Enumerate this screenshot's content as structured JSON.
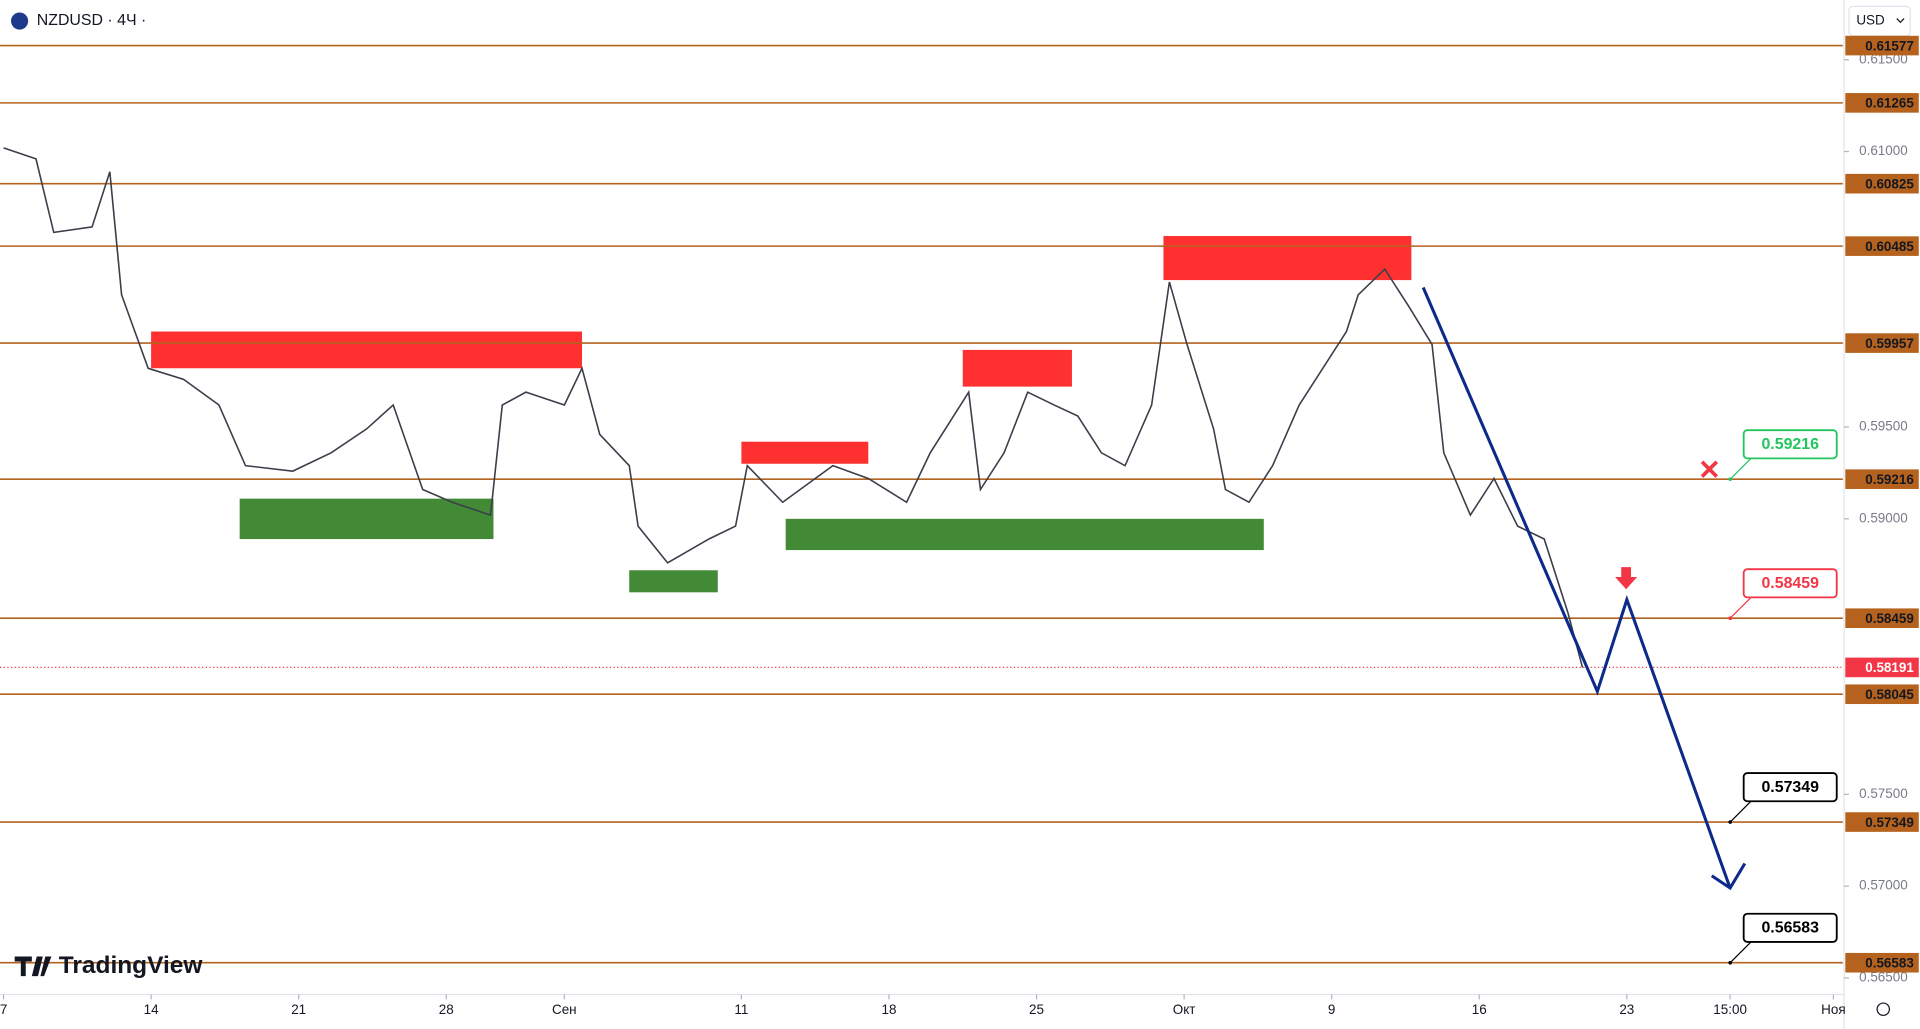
{
  "chart_data": {
    "type": "line",
    "title": "NZDUSD · 4Ч ·",
    "currency": "USD",
    "brand": "TradingView",
    "color": "#3b3f4a",
    "xlim": [
      -0.12,
      62.32
    ],
    "ylim": [
      0.5641,
      0.61824
    ],
    "xticks": [
      {
        "value": 0,
        "label": "7"
      },
      {
        "value": 5,
        "label": "14"
      },
      {
        "value": 10,
        "label": "21"
      },
      {
        "value": 15,
        "label": "28"
      },
      {
        "value": 19,
        "label": "Сен"
      },
      {
        "value": 25,
        "label": "11"
      },
      {
        "value": 30,
        "label": "18"
      },
      {
        "value": 35,
        "label": "25"
      },
      {
        "value": 40,
        "label": "Окт"
      },
      {
        "value": 45,
        "label": "9"
      },
      {
        "value": 50,
        "label": "16"
      },
      {
        "value": 55,
        "label": "23"
      },
      {
        "value": 58.5,
        "label": "15:00"
      },
      {
        "value": 62,
        "label": "Ноя"
      }
    ],
    "yticks": [
      {
        "value": 0.615,
        "label": "0.61500"
      },
      {
        "value": 0.61,
        "label": "0.61000"
      },
      {
        "value": 0.595,
        "label": "0.59500"
      },
      {
        "value": 0.59,
        "label": "0.59000"
      },
      {
        "value": 0.575,
        "label": "0.57500"
      },
      {
        "value": 0.57,
        "label": "0.57000"
      },
      {
        "value": 0.565,
        "label": "0.56500"
      }
    ],
    "x": [
      0,
      1.1,
      1.7,
      3,
      3.6,
      4,
      4.9,
      6.1,
      7.3,
      8.2,
      9.8,
      11.1,
      12.3,
      13.2,
      14.2,
      15.2,
      16.5,
      16.9,
      17.7,
      19,
      19.6,
      20.2,
      21.2,
      21.5,
      22.5,
      23.9,
      24.8,
      25.2,
      26.4,
      28.1,
      29.3,
      30.6,
      31.4,
      32.7,
      33.1,
      33.9,
      34.7,
      35.6,
      36.4,
      37.2,
      38,
      38.9,
      39.5,
      40.1,
      41,
      41.4,
      42.2,
      43,
      43.9,
      44.7,
      45.5,
      45.9,
      46.8,
      47.6,
      48.4,
      48.8,
      49.7,
      50.5,
      51.3,
      52.2,
      53,
      53.5
    ],
    "values": [
      0.6102,
      0.6096,
      0.6056,
      0.6059,
      0.6089,
      0.6022,
      0.5982,
      0.5976,
      0.5962,
      0.5929,
      0.5926,
      0.5936,
      0.5949,
      0.5962,
      0.5916,
      0.5909,
      0.5902,
      0.5962,
      0.5969,
      0.5962,
      0.5982,
      0.5946,
      0.5929,
      0.5896,
      0.5876,
      0.5889,
      0.5896,
      0.5929,
      0.5909,
      0.5929,
      0.5922,
      0.5909,
      0.5936,
      0.5969,
      0.5916,
      0.5936,
      0.5969,
      0.5962,
      0.5956,
      0.5936,
      0.5929,
      0.5962,
      0.6029,
      0.5995,
      0.5949,
      0.5916,
      0.5909,
      0.5929,
      0.5962,
      0.5982,
      0.6002,
      0.6022,
      0.6036,
      0.6016,
      0.5995,
      0.5936,
      0.5902,
      0.5922,
      0.5896,
      0.5889,
      0.5849,
      0.5819
    ],
    "levels": [
      0.61577,
      0.61265,
      0.60825,
      0.60485,
      0.59957,
      0.59216,
      0.58459,
      0.58045,
      0.57349,
      0.56583
    ],
    "level_color": "#b5621e",
    "current_price": 0.58191,
    "current_color": "#f23645",
    "zones": [
      {
        "x": [
          5,
          19.6
        ],
        "y": [
          0.6002,
          0.5982
        ],
        "color": "#ff1a1a"
      },
      {
        "x": [
          8,
          16.6
        ],
        "y": [
          0.5911,
          0.5889
        ],
        "color": "#2e7d1f"
      },
      {
        "x": [
          21.2,
          24.2
        ],
        "y": [
          0.5872,
          0.586
        ],
        "color": "#2e7d1f"
      },
      {
        "x": [
          25,
          29.3
        ],
        "y": [
          0.5942,
          0.593
        ],
        "color": "#ff1a1a"
      },
      {
        "x": [
          26.5,
          42.7
        ],
        "y": [
          0.59,
          0.5883
        ],
        "color": "#2e7d1f"
      },
      {
        "x": [
          32.5,
          36.2
        ],
        "y": [
          0.5992,
          0.5972
        ],
        "color": "#ff1a1a"
      },
      {
        "x": [
          39.3,
          47.7
        ],
        "y": [
          0.6054,
          0.603
        ],
        "color": "#ff1a1a"
      }
    ],
    "projection": {
      "x": [
        48.1,
        54,
        55,
        58.5
      ],
      "values": [
        0.6026,
        0.5806,
        0.5856,
        0.5699
      ],
      "color": "#0d2a8a"
    },
    "callouts": [
      {
        "value": 0.59216,
        "color": "#22c55e"
      },
      {
        "value": 0.58459,
        "color": "#f23645"
      },
      {
        "value": 0.57349,
        "color": "#000000"
      },
      {
        "value": 0.56583,
        "color": "#000000"
      }
    ]
  }
}
